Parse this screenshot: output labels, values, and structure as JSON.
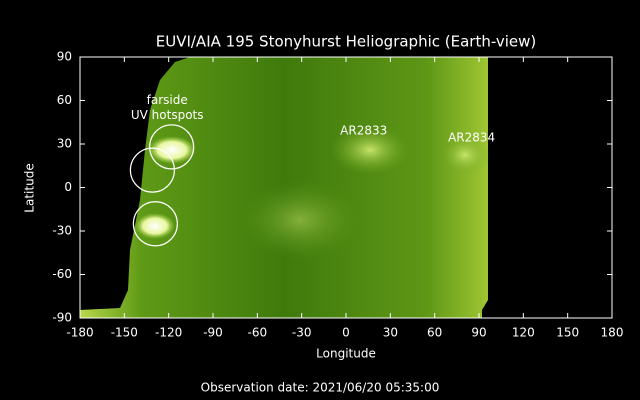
{
  "chart_data": {
    "type": "map",
    "title": "EUVI/AIA 195 Stonyhurst Heliographic (Earth-view)",
    "xlabel": "Longitude",
    "ylabel": "Latitude",
    "xlim": [
      -180,
      180
    ],
    "ylim": [
      -90,
      90
    ],
    "xticks": [
      -180,
      -150,
      -120,
      -90,
      -60,
      -30,
      0,
      30,
      60,
      90,
      120,
      150,
      180
    ],
    "yticks": [
      -90,
      -60,
      -30,
      0,
      30,
      60,
      90
    ],
    "annotations": [
      {
        "lines": [
          "farside",
          "UV hotspots"
        ],
        "x": -121,
        "y": 55
      },
      {
        "lines": [
          "AR2833"
        ],
        "x": 12,
        "y": 39
      },
      {
        "lines": [
          "AR2834"
        ],
        "x": 85,
        "y": 34
      }
    ],
    "markers": [
      {
        "x": -118,
        "y": 28
      },
      {
        "x": -131,
        "y": 12
      },
      {
        "x": -129,
        "y": -25
      }
    ],
    "footer": "Observation date: 2021/06/20 05:35:00"
  }
}
